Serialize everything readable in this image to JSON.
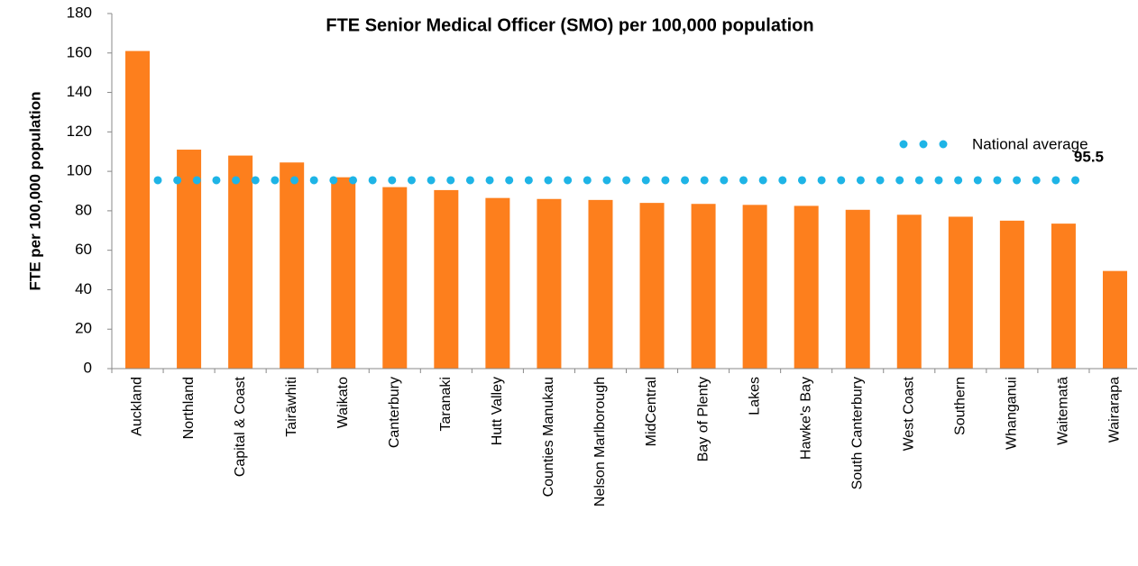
{
  "chart_data": {
    "type": "bar",
    "title": "FTE Senior Medical Officer (SMO) per 100,000 population",
    "y_label": "FTE per 100,000 population",
    "categories": [
      "Auckland",
      "Northland",
      "Capital & Coast",
      "Tairāwhiti",
      "Waikato",
      "Canterbury",
      "Taranaki",
      "Hutt Valley",
      "Counties Manukau",
      "Nelson Marlborough",
      "MidCentral",
      "Bay of Plenty",
      "Lakes",
      "Hawke's Bay",
      "South Canterbury",
      "West Coast",
      "Southern",
      "Whanganui",
      "Waitematā",
      "Wairarapa"
    ],
    "values": [
      161,
      111,
      108,
      104.5,
      97,
      92,
      90.5,
      86.5,
      86,
      85.5,
      84,
      83.5,
      83,
      82.5,
      80.5,
      78,
      77,
      75,
      73.5,
      49.5
    ],
    "color": "#fd7f1d",
    "reference_line": {
      "name": "National average",
      "value": 95.5,
      "color": "#1eb4e6"
    },
    "ylim": [
      0,
      180
    ],
    "yticks": [
      0,
      20,
      40,
      60,
      80,
      100,
      120,
      140,
      160,
      180
    ],
    "grid": false
  }
}
